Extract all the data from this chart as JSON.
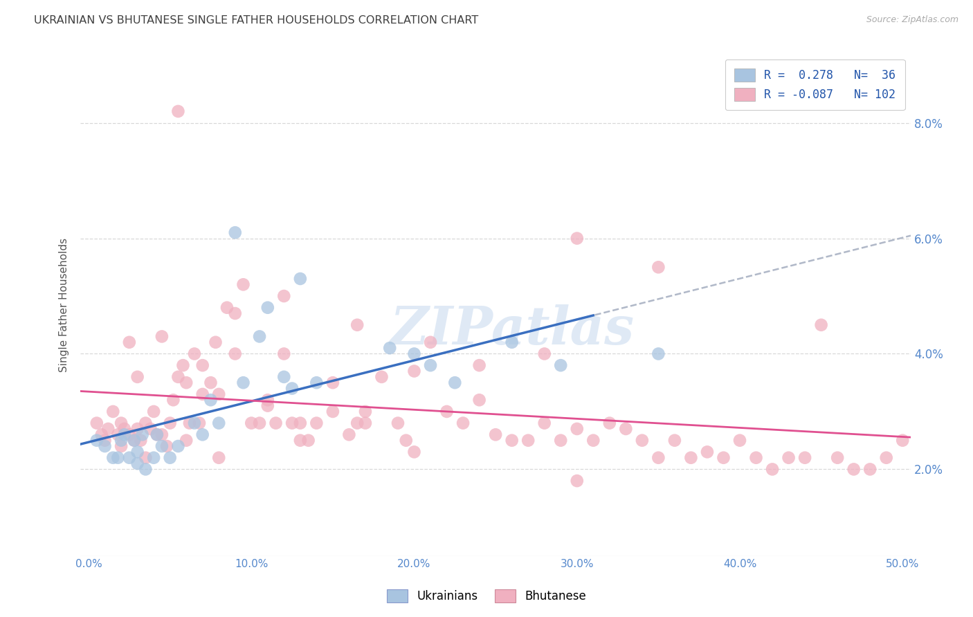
{
  "title": "UKRAINIAN VS BHUTANESE SINGLE FATHER HOUSEHOLDS CORRELATION CHART",
  "source": "Source: ZipAtlas.com",
  "ylabel": "Single Father Households",
  "xlabel_ticks": [
    "0.0%",
    "10.0%",
    "20.0%",
    "30.0%",
    "40.0%",
    "50.0%"
  ],
  "ylabel_ticks": [
    "2.0%",
    "4.0%",
    "6.0%",
    "8.0%"
  ],
  "xlim": [
    -0.005,
    0.505
  ],
  "ylim": [
    0.005,
    0.092
  ],
  "watermark": "ZIPatlas",
  "blue_color": "#a8c4e0",
  "pink_color": "#f0b0c0",
  "blue_line_color": "#3a6fc0",
  "pink_line_color": "#e05090",
  "dashed_line_color": "#b0b8c8",
  "grid_color": "#d8d8d8",
  "title_color": "#404040",
  "axis_label_color": "#5588cc",
  "blue_scatter_x": [
    0.005,
    0.01,
    0.015,
    0.018,
    0.02,
    0.022,
    0.025,
    0.028,
    0.03,
    0.03,
    0.033,
    0.035,
    0.04,
    0.042,
    0.045,
    0.05,
    0.055,
    0.065,
    0.07,
    0.075,
    0.08,
    0.09,
    0.095,
    0.105,
    0.11,
    0.12,
    0.125,
    0.13,
    0.14,
    0.185,
    0.2,
    0.21,
    0.225,
    0.26,
    0.29,
    0.35
  ],
  "blue_scatter_y": [
    0.025,
    0.024,
    0.022,
    0.022,
    0.025,
    0.026,
    0.022,
    0.025,
    0.021,
    0.023,
    0.026,
    0.02,
    0.022,
    0.026,
    0.024,
    0.022,
    0.024,
    0.028,
    0.026,
    0.032,
    0.028,
    0.061,
    0.035,
    0.043,
    0.048,
    0.036,
    0.034,
    0.053,
    0.035,
    0.041,
    0.04,
    0.038,
    0.035,
    0.042,
    0.038,
    0.04
  ],
  "pink_scatter_x": [
    0.005,
    0.008,
    0.01,
    0.012,
    0.015,
    0.018,
    0.02,
    0.022,
    0.025,
    0.028,
    0.03,
    0.032,
    0.035,
    0.038,
    0.04,
    0.042,
    0.045,
    0.048,
    0.05,
    0.052,
    0.055,
    0.058,
    0.06,
    0.062,
    0.065,
    0.068,
    0.07,
    0.075,
    0.078,
    0.08,
    0.085,
    0.09,
    0.095,
    0.1,
    0.105,
    0.11,
    0.115,
    0.12,
    0.125,
    0.13,
    0.135,
    0.14,
    0.15,
    0.16,
    0.165,
    0.17,
    0.18,
    0.19,
    0.195,
    0.2,
    0.21,
    0.22,
    0.23,
    0.24,
    0.25,
    0.26,
    0.27,
    0.28,
    0.29,
    0.3,
    0.31,
    0.32,
    0.33,
    0.34,
    0.35,
    0.36,
    0.37,
    0.38,
    0.39,
    0.4,
    0.41,
    0.42,
    0.43,
    0.44,
    0.45,
    0.46,
    0.47,
    0.48,
    0.49,
    0.5,
    0.35,
    0.28,
    0.3,
    0.24,
    0.055,
    0.12,
    0.165,
    0.2,
    0.13,
    0.09,
    0.15,
    0.07,
    0.045,
    0.03,
    0.02,
    0.025,
    0.035,
    0.06,
    0.08,
    0.11,
    0.17,
    0.3
  ],
  "pink_scatter_y": [
    0.028,
    0.026,
    0.025,
    0.027,
    0.03,
    0.026,
    0.028,
    0.027,
    0.026,
    0.025,
    0.027,
    0.025,
    0.028,
    0.027,
    0.03,
    0.026,
    0.043,
    0.024,
    0.028,
    0.032,
    0.036,
    0.038,
    0.035,
    0.028,
    0.04,
    0.028,
    0.038,
    0.035,
    0.042,
    0.033,
    0.048,
    0.04,
    0.052,
    0.028,
    0.028,
    0.031,
    0.028,
    0.04,
    0.028,
    0.028,
    0.025,
    0.028,
    0.035,
    0.026,
    0.028,
    0.03,
    0.036,
    0.028,
    0.025,
    0.023,
    0.042,
    0.03,
    0.028,
    0.032,
    0.026,
    0.025,
    0.025,
    0.028,
    0.025,
    0.027,
    0.025,
    0.028,
    0.027,
    0.025,
    0.022,
    0.025,
    0.022,
    0.023,
    0.022,
    0.025,
    0.022,
    0.02,
    0.022,
    0.022,
    0.045,
    0.022,
    0.02,
    0.02,
    0.022,
    0.025,
    0.055,
    0.04,
    0.06,
    0.038,
    0.082,
    0.05,
    0.045,
    0.037,
    0.025,
    0.047,
    0.03,
    0.033,
    0.026,
    0.036,
    0.024,
    0.042,
    0.022,
    0.025,
    0.022,
    0.032,
    0.028,
    0.018
  ]
}
